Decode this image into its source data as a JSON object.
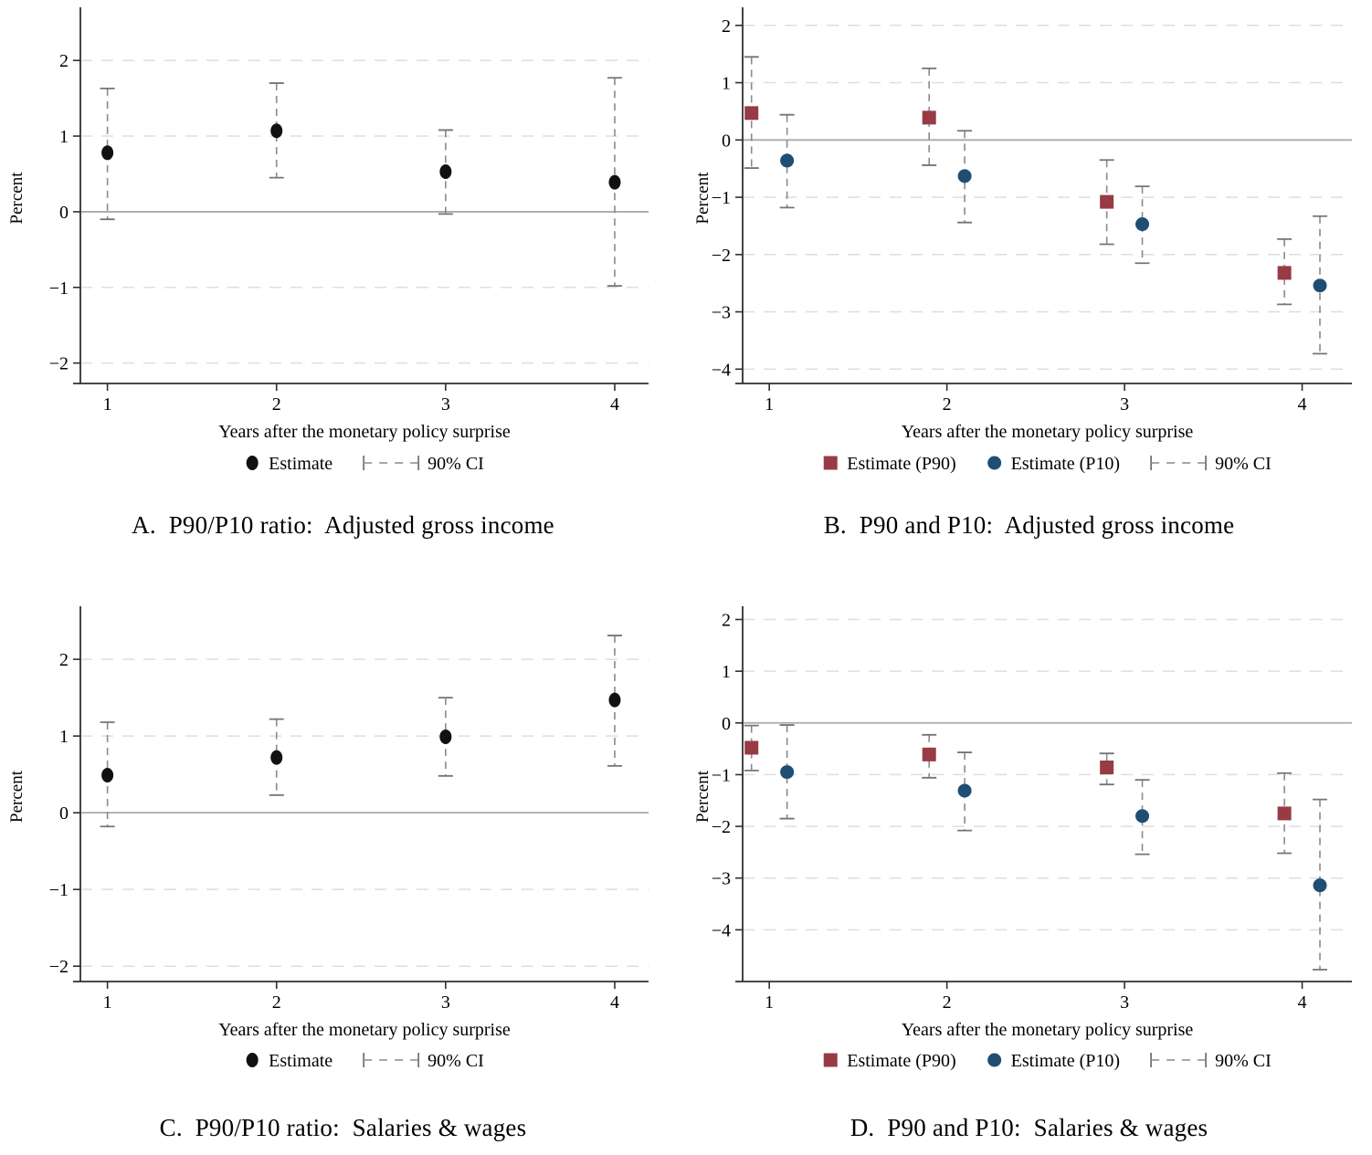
{
  "figure": {
    "background": "#ffffff",
    "ci_legend_label": "90% CI"
  },
  "colors": {
    "black_marker": "#111111",
    "maroon": "#983b44",
    "navy": "#1f4e74",
    "ci_line": "#8a8a8a",
    "ci_cap": "#757575",
    "grid": "#dedede",
    "zero_line": "#aaaaaa",
    "axis": "#2f2f2f",
    "text": "#000000"
  },
  "chart_data": [
    {
      "type": "scatter",
      "panel": "A",
      "title": "A.  P90/P10 ratio:  Adjusted gross income",
      "xlabel": "Years after the monetary policy surprise",
      "ylabel": "Percent",
      "ci_label": "90% CI",
      "x_ticks": [
        1,
        2,
        3,
        4
      ],
      "y_ticks": [
        2,
        1,
        0,
        -1,
        -2
      ],
      "xlim": [
        0.84,
        4.2
      ],
      "ylim": [
        -2.27,
        2.63
      ],
      "zero_line": true,
      "grid": "dashed-horizontal",
      "legend_position": "bottom-center",
      "series": [
        {
          "name": "Estimate",
          "marker": "ellipse",
          "color": "#111111",
          "x_offset": 0,
          "points": [
            {
              "x": 1,
              "est": 0.78,
              "lo": -0.1,
              "hi": 1.63
            },
            {
              "x": 2,
              "est": 1.07,
              "lo": 0.45,
              "hi": 1.7
            },
            {
              "x": 3,
              "est": 0.53,
              "lo": -0.03,
              "hi": 1.08
            },
            {
              "x": 4,
              "est": 0.39,
              "lo": -0.98,
              "hi": 1.77
            }
          ]
        }
      ]
    },
    {
      "type": "scatter",
      "panel": "B",
      "title": "B.  P90 and P10:  Adjusted gross income",
      "xlabel": "Years after the monetary policy surprise",
      "ylabel": "Percent",
      "ci_label": "90% CI",
      "x_ticks": [
        1,
        2,
        3,
        4
      ],
      "y_ticks": [
        2,
        1,
        0,
        -1,
        -2,
        -3,
        -4
      ],
      "xlim": [
        0.85,
        4.28
      ],
      "ylim": [
        -4.25,
        2.22
      ],
      "zero_line": true,
      "grid": "dashed-horizontal",
      "legend_position": "bottom-center",
      "series": [
        {
          "name": "Estimate (P90)",
          "marker": "square",
          "color": "#983b44",
          "x_offset": -0.1,
          "points": [
            {
              "x": 1,
              "est": 0.47,
              "lo": -0.49,
              "hi": 1.45
            },
            {
              "x": 2,
              "est": 0.39,
              "lo": -0.44,
              "hi": 1.25
            },
            {
              "x": 3,
              "est": -1.08,
              "lo": -1.82,
              "hi": -0.35
            },
            {
              "x": 4,
              "est": -2.32,
              "lo": -2.87,
              "hi": -1.73
            }
          ]
        },
        {
          "name": "Estimate (P10)",
          "marker": "circle",
          "color": "#1f4e74",
          "x_offset": 0.1,
          "points": [
            {
              "x": 1,
              "est": -0.36,
              "lo": -1.18,
              "hi": 0.44
            },
            {
              "x": 2,
              "est": -0.63,
              "lo": -1.44,
              "hi": 0.16
            },
            {
              "x": 3,
              "est": -1.47,
              "lo": -2.15,
              "hi": -0.81
            },
            {
              "x": 4,
              "est": -2.54,
              "lo": -3.73,
              "hi": -1.33
            }
          ]
        }
      ]
    },
    {
      "type": "scatter",
      "panel": "C",
      "title": "C.  P90/P10 ratio:  Salaries & wages",
      "xlabel": "Years after the monetary policy surprise",
      "ylabel": "Percent",
      "ci_label": "90% CI",
      "x_ticks": [
        1,
        2,
        3,
        4
      ],
      "y_ticks": [
        2,
        1,
        0,
        -1,
        -2
      ],
      "xlim": [
        0.84,
        4.2
      ],
      "ylim": [
        -2.2,
        2.62
      ],
      "zero_line": true,
      "grid": "dashed-horizontal",
      "legend_position": "bottom-center",
      "series": [
        {
          "name": "Estimate",
          "marker": "ellipse",
          "color": "#111111",
          "x_offset": 0,
          "points": [
            {
              "x": 1,
              "est": 0.49,
              "lo": -0.18,
              "hi": 1.18
            },
            {
              "x": 2,
              "est": 0.72,
              "lo": 0.23,
              "hi": 1.22
            },
            {
              "x": 3,
              "est": 0.99,
              "lo": 0.48,
              "hi": 1.5
            },
            {
              "x": 4,
              "est": 1.47,
              "lo": 0.61,
              "hi": 2.31
            }
          ]
        }
      ]
    },
    {
      "type": "scatter",
      "panel": "D",
      "title": "D.  P90 and P10:  Salaries & wages",
      "xlabel": "Years after the monetary policy surprise",
      "ylabel": "Percent",
      "ci_label": "90% CI",
      "x_ticks": [
        1,
        2,
        3,
        4
      ],
      "y_ticks": [
        2,
        1,
        0,
        -1,
        -2,
        -3,
        -4
      ],
      "xlim": [
        0.85,
        4.28
      ],
      "ylim": [
        -5.0,
        2.15
      ],
      "zero_line": true,
      "grid": "dashed-horizontal",
      "legend_position": "bottom-center",
      "series": [
        {
          "name": "Estimate (P90)",
          "marker": "square",
          "color": "#983b44",
          "x_offset": -0.1,
          "points": [
            {
              "x": 1,
              "est": -0.48,
              "lo": -0.92,
              "hi": -0.05
            },
            {
              "x": 2,
              "est": -0.61,
              "lo": -1.06,
              "hi": -0.23
            },
            {
              "x": 3,
              "est": -0.86,
              "lo": -1.19,
              "hi": -0.59
            },
            {
              "x": 4,
              "est": -1.75,
              "lo": -2.52,
              "hi": -0.97
            }
          ]
        },
        {
          "name": "Estimate (P10)",
          "marker": "circle",
          "color": "#1f4e74",
          "x_offset": 0.1,
          "points": [
            {
              "x": 1,
              "est": -0.95,
              "lo": -1.85,
              "hi": -0.04
            },
            {
              "x": 2,
              "est": -1.31,
              "lo": -2.08,
              "hi": -0.57
            },
            {
              "x": 3,
              "est": -1.8,
              "lo": -2.54,
              "hi": -1.1
            },
            {
              "x": 4,
              "est": -3.14,
              "lo": -4.77,
              "hi": -1.48
            }
          ]
        }
      ]
    }
  ]
}
